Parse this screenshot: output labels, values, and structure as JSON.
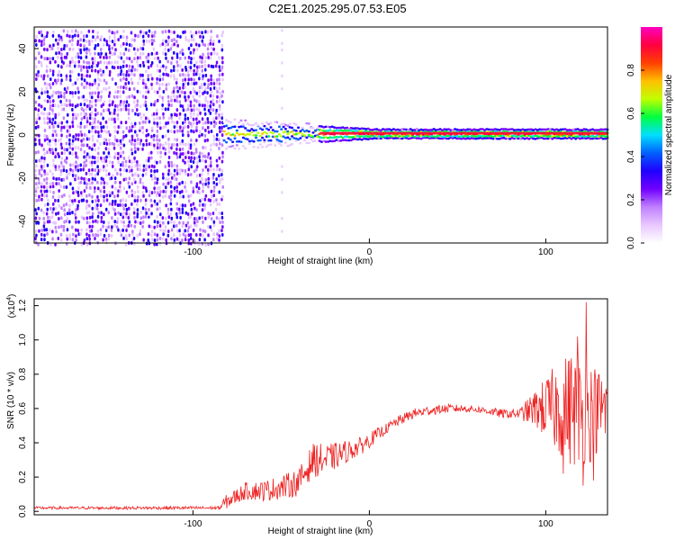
{
  "title": "C2E1.2025.295.07.53.E05",
  "chart_data": [
    {
      "type": "heatmap",
      "name": "spectrogram",
      "xlabel": "Height of straight line (km)",
      "ylabel": "Frequency (Hz)",
      "xlim": [
        -190,
        135
      ],
      "ylim": [
        -50,
        50
      ],
      "xticks": [
        -100,
        0,
        100
      ],
      "xtick_labels": [
        "-100",
        "0",
        "100"
      ],
      "yticks": [
        -40,
        -20,
        0,
        20,
        40
      ],
      "ytick_labels": [
        "-40",
        "-20",
        "0",
        "20",
        "40"
      ],
      "colorbar": {
        "label": "Normalized spectral amplitude",
        "range": [
          0,
          1
        ],
        "ticks": [
          0.0,
          0.2,
          0.4,
          0.6,
          0.8
        ],
        "tick_labels": [
          "0.0",
          "0.2",
          "0.4",
          "0.6",
          "0.8"
        ],
        "colors": [
          "#ffffff",
          "#e8c8ff",
          "#c080ff",
          "#7000ff",
          "#2000ff",
          "#0060ff",
          "#00e0ff",
          "#00ff40",
          "#c0ff00",
          "#ffc000",
          "#ff4000",
          "#ff0040",
          "#ff00c0"
        ]
      },
      "features": {
        "noise_region_km": [
          -190,
          -83
        ],
        "noise_amplitude": [
          0.05,
          0.35
        ],
        "line_start_km": -83,
        "line_freq_hz": 1,
        "line_width_hz": [
          6,
          2
        ],
        "faint_stripe_km": -50
      }
    },
    {
      "type": "line",
      "name": "snr",
      "xlabel": "Height of straight line (km)",
      "ylabel": "SNR (10 * v/v)",
      "scale_label": "(x10",
      "scale_exponent": "4",
      "scale_close": ")",
      "xlim": [
        -190,
        135
      ],
      "ylim": [
        -0.02,
        1.24
      ],
      "xticks": [
        -100,
        0,
        100
      ],
      "xtick_labels": [
        "-100",
        "0",
        "100"
      ],
      "yticks": [
        0.0,
        0.2,
        0.4,
        0.6,
        0.8,
        1.0,
        1.2
      ],
      "ytick_labels": [
        "0.0",
        "0.2",
        "0.4",
        "0.6",
        "0.8",
        "1.0",
        "1.2"
      ],
      "color": "#ee2222",
      "trend": {
        "x": [
          -190,
          -85,
          -82,
          -70,
          -60,
          -50,
          -40,
          -32,
          -25,
          -15,
          -5,
          5,
          15,
          25,
          35,
          45,
          55,
          65,
          75,
          85,
          95,
          105,
          115,
          125,
          135
        ],
        "y": [
          0.02,
          0.02,
          0.05,
          0.12,
          0.12,
          0.14,
          0.17,
          0.3,
          0.3,
          0.34,
          0.38,
          0.45,
          0.52,
          0.57,
          0.59,
          0.6,
          0.6,
          0.59,
          0.57,
          0.57,
          0.6,
          0.6,
          0.6,
          0.58,
          0.6
        ]
      },
      "noise": {
        "x": [
          -190,
          -85,
          -82,
          -60,
          -40,
          -30,
          -10,
          10,
          30,
          60,
          85,
          95,
          105,
          115,
          125,
          135
        ],
        "amp": [
          0.008,
          0.01,
          0.04,
          0.06,
          0.08,
          0.1,
          0.06,
          0.03,
          0.03,
          0.02,
          0.03,
          0.12,
          0.25,
          0.35,
          0.3,
          0.2
        ]
      },
      "spikes": [
        {
          "x": 118,
          "y": 1.02
        },
        {
          "x": 123,
          "y": 1.22
        },
        {
          "x": 121,
          "y": 0.15
        },
        {
          "x": 110,
          "y": 0.22
        },
        {
          "x": 127,
          "y": 0.18
        }
      ]
    }
  ]
}
